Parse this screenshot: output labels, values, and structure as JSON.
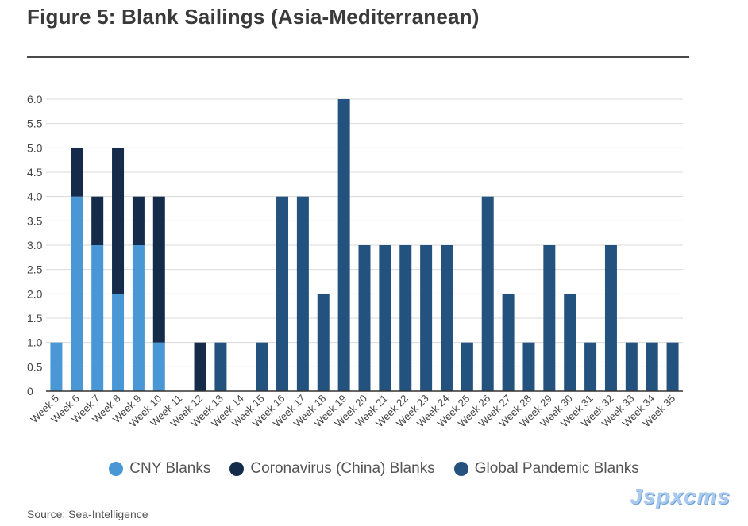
{
  "header": {
    "title": "Figure 5: Blank Sailings (Asia-Mediterranean)"
  },
  "footer": {
    "source": "Source: Sea-Intelligence",
    "watermark": "Jspxcms"
  },
  "colors": {
    "cny": "#4a97d6",
    "corona": "#142b4a",
    "global": "#24527f",
    "grid": "#d9d9d9",
    "axis": "#333333"
  },
  "chart_data": {
    "type": "bar",
    "stacked": true,
    "title": "Figure 5: Blank Sailings (Asia-Mediterranean)",
    "xlabel": "",
    "ylabel": "",
    "ylim": [
      0,
      6
    ],
    "yticks": [
      "0",
      "0.5",
      "1.0",
      "1.5",
      "2.0",
      "2.5",
      "3.0",
      "3.5",
      "4.0",
      "4.5",
      "5.0",
      "5.5",
      "6.0"
    ],
    "grid": true,
    "legend": "bottom",
    "categories": [
      "Week 5",
      "Week 6",
      "Week 7",
      "Week 8",
      "Week 9",
      "Week 10",
      "Week 11",
      "Week 12",
      "Week 13",
      "Week 14",
      "Week 15",
      "Week 16",
      "Week 17",
      "Week 18",
      "Week 19",
      "Week 20",
      "Week 21",
      "Week 22",
      "Week 23",
      "Week 24",
      "Week 25",
      "Week 26",
      "Week 27",
      "Week 28",
      "Week 29",
      "Week 30",
      "Week 31",
      "Week 32",
      "Week 33",
      "Week 34",
      "Week 35"
    ],
    "series": [
      {
        "name": "CNY Blanks",
        "color": "#4a97d6",
        "values": [
          1,
          4,
          3,
          2,
          3,
          1,
          0,
          0,
          0,
          0,
          0,
          0,
          0,
          0,
          0,
          0,
          0,
          0,
          0,
          0,
          0,
          0,
          0,
          0,
          0,
          0,
          0,
          0,
          0,
          0,
          0
        ]
      },
      {
        "name": "Coronavirus (China) Blanks",
        "color": "#142b4a",
        "values": [
          0,
          1,
          1,
          3,
          1,
          3,
          0,
          1,
          0,
          0,
          0,
          0,
          0,
          0,
          0,
          0,
          0,
          0,
          0,
          0,
          0,
          0,
          0,
          0,
          0,
          0,
          0,
          0,
          0,
          0,
          0
        ]
      },
      {
        "name": "Global Pandemic Blanks",
        "color": "#24527f",
        "values": [
          0,
          0,
          0,
          0,
          0,
          0,
          0,
          0,
          1,
          0,
          1,
          4,
          4,
          2,
          6,
          3,
          3,
          3,
          3,
          3,
          1,
          4,
          2,
          1,
          3,
          2,
          1,
          3,
          1,
          1,
          1
        ]
      }
    ]
  }
}
